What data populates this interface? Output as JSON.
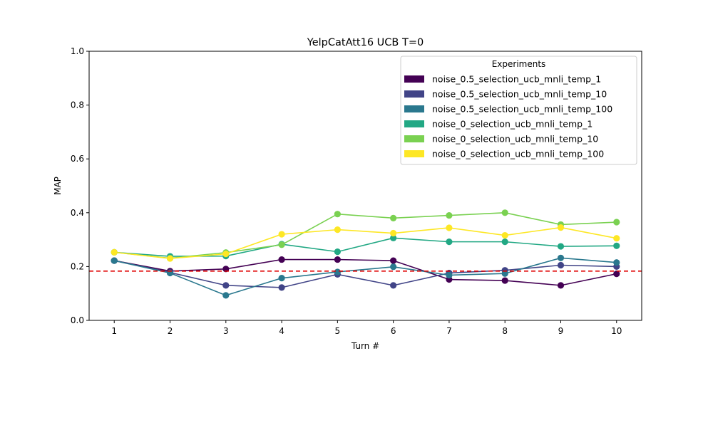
{
  "chart_data": {
    "type": "line",
    "title": "YelpCatAtt16 UCB T=0",
    "xlabel": "Turn #",
    "ylabel": "MAP",
    "x": [
      1,
      2,
      3,
      4,
      5,
      6,
      7,
      8,
      9,
      10
    ],
    "xlim": [
      0.55,
      10.45
    ],
    "ylim": [
      0,
      1
    ],
    "yticks": [
      0.0,
      0.2,
      0.4,
      0.6,
      0.8,
      1.0
    ],
    "ytick_labels": [
      "0.0",
      "0.2",
      "0.4",
      "0.6",
      "0.8",
      "1.0"
    ],
    "xticks": [
      1,
      2,
      3,
      4,
      5,
      6,
      7,
      8,
      9,
      10
    ],
    "xtick_labels": [
      "1",
      "2",
      "3",
      "4",
      "5",
      "6",
      "7",
      "8",
      "9",
      "10"
    ],
    "grid": false,
    "baseline": {
      "value": 0.183,
      "color": "#e00000",
      "style": "dashed"
    },
    "legend": {
      "title": "Experiments",
      "placement": "top-right"
    },
    "series": [
      {
        "name": "noise_0.5_selection_ucb_mnli_temp_1",
        "color": "#440154",
        "values": [
          0.222,
          0.183,
          0.191,
          0.226,
          0.226,
          0.222,
          0.152,
          0.148,
          0.13,
          0.173
        ]
      },
      {
        "name": "noise_0.5_selection_ucb_mnli_temp_10",
        "color": "#414487",
        "values": [
          0.222,
          0.178,
          0.13,
          0.122,
          0.171,
          0.13,
          0.176,
          0.186,
          0.205,
          0.2
        ]
      },
      {
        "name": "noise_0.5_selection_ucb_mnli_temp_100",
        "color": "#2a788e",
        "values": [
          0.222,
          0.176,
          0.093,
          0.157,
          0.18,
          0.199,
          0.168,
          0.174,
          0.232,
          0.215
        ]
      },
      {
        "name": "noise_0_selection_ucb_mnli_temp_1",
        "color": "#22a884",
        "values": [
          0.253,
          0.238,
          0.239,
          0.283,
          0.255,
          0.306,
          0.292,
          0.292,
          0.275,
          0.277
        ]
      },
      {
        "name": "noise_0_selection_ucb_mnli_temp_10",
        "color": "#7ad151",
        "values": [
          0.253,
          0.231,
          0.252,
          0.281,
          0.395,
          0.38,
          0.39,
          0.4,
          0.356,
          0.365
        ]
      },
      {
        "name": "noise_0_selection_ucb_mnli_temp_100",
        "color": "#fde725",
        "values": [
          0.253,
          0.23,
          0.247,
          0.32,
          0.337,
          0.324,
          0.344,
          0.316,
          0.345,
          0.305
        ]
      }
    ]
  }
}
